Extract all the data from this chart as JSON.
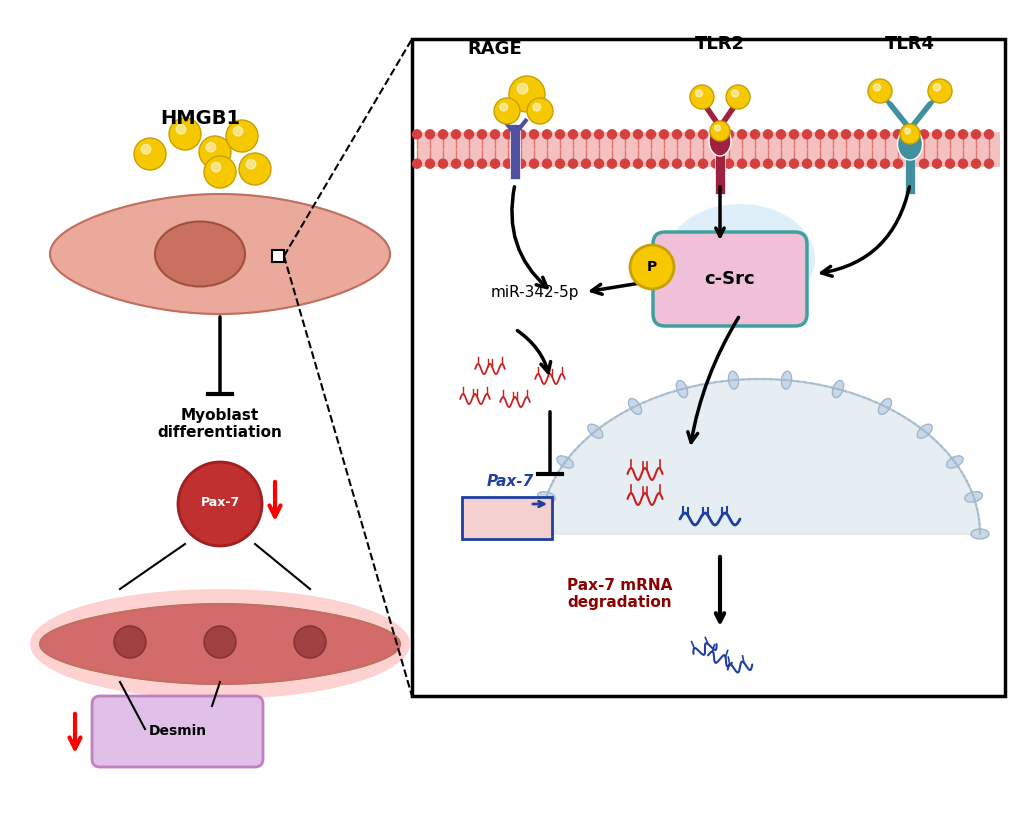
{
  "bg_color": "#ffffff",
  "cell_color": "#e8a090",
  "cell_nucleus_color": "#c97060",
  "membrane_color": "#d44040",
  "membrane_bg": "#f5c0c0",
  "box_bg": "#e8f4f8",
  "box_border": "#333333",
  "csrc_color": "#f0c0d8",
  "csrc_border": "#40a0a0",
  "nucleus_bg": "#d0dff0",
  "nucleus_border": "#a0b8d0",
  "pax7_box_color": "#f5d0d0",
  "pax7_box_border": "#2020a0",
  "gold_color": "#f5c800",
  "gold_shadow": "#c8a000",
  "rage_receptor_color": "#5050a0",
  "tlr2_color": "#a02040",
  "tlr4_color": "#4090a0",
  "red_rna_color": "#cc2020",
  "blue_rna_color": "#2040a0",
  "p_circle_color": "#f5c800",
  "arrow_color": "#111111",
  "desmin_bg": "#e0c0e8",
  "desmin_border": "#c080c0",
  "pax7_circle_bg": "#c03030",
  "pax7_circle_border": "#a02020",
  "title_hmgb1": "HMGB1",
  "title_rage": "RAGE",
  "title_tlr2": "TLR2",
  "title_tlr4": "TLR4",
  "title_csrc": "c-Src",
  "title_p": "P",
  "title_mir": "miR-342-5p",
  "title_pax7_mrna": "Pax-7 mRNA\ndegradation",
  "title_myoblast": "Myoblast\ndifferentiation",
  "title_desmin": "Desmin",
  "title_pax7": "Pax-7"
}
